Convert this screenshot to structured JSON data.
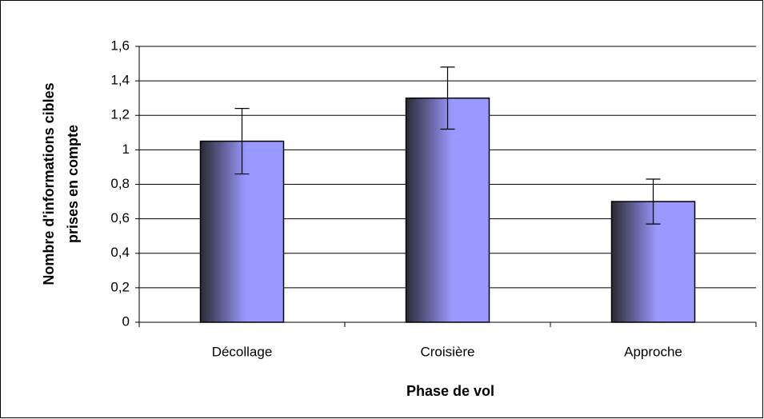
{
  "chart_data": {
    "type": "bar",
    "xlabel": "Phase de vol",
    "ylabel": [
      "Nombre d'informations cibles",
      "prises en compte"
    ],
    "categories": [
      "Décollage",
      "Croisière",
      "Approche"
    ],
    "values": [
      1.05,
      1.3,
      0.7
    ],
    "errors": [
      0.19,
      0.18,
      0.13
    ],
    "color": "#9999ff",
    "ylim": [
      0,
      1.6
    ],
    "yticks": [
      0,
      {
        "value": 0.2,
        "label": "0,2"
      },
      {
        "value": 0.4,
        "label": "0,4"
      },
      {
        "value": 0.6,
        "label": "0,6"
      },
      {
        "value": 0.8,
        "label": "0,8"
      },
      1,
      {
        "value": 1.2,
        "label": "1,2"
      },
      {
        "value": 1.4,
        "label": "1,4"
      },
      {
        "value": 1.6,
        "label": "1,6"
      }
    ],
    "grid": true
  }
}
